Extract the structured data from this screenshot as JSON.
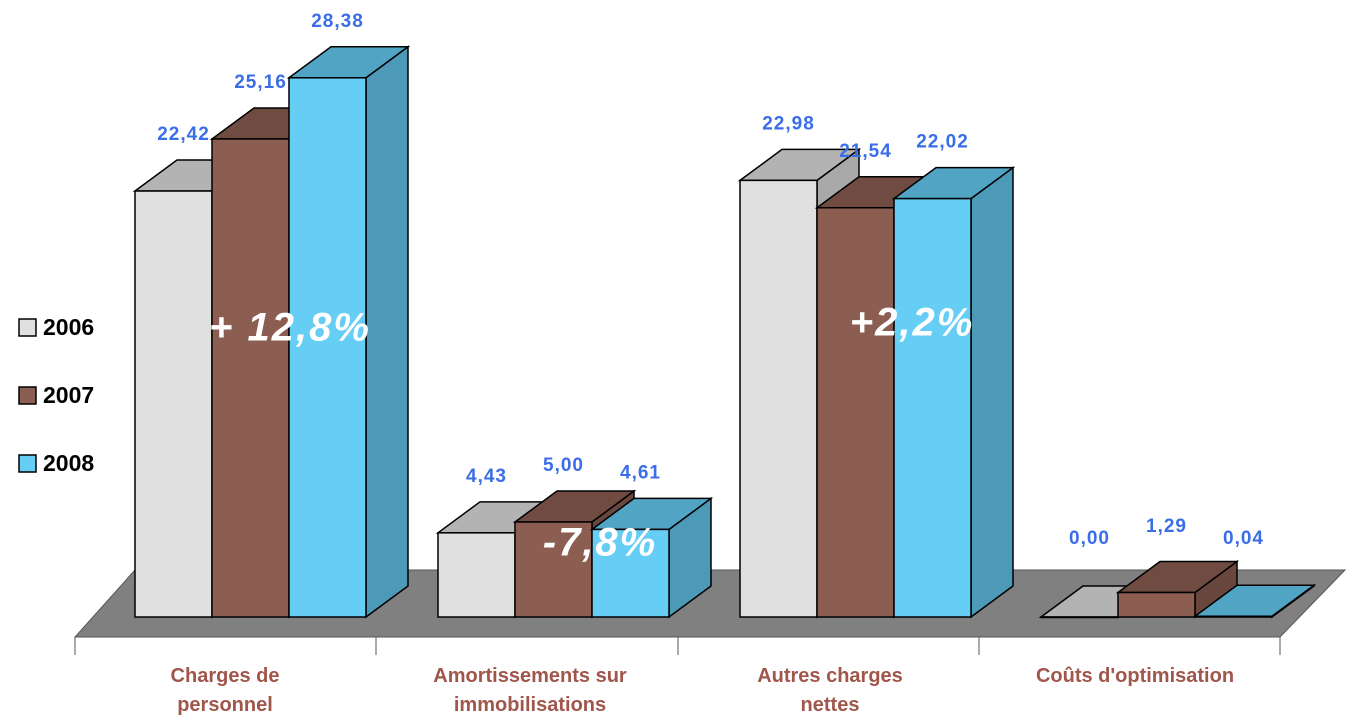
{
  "chart_data": {
    "type": "bar3d",
    "categories": [
      "Charges de personnel",
      "Amortissements sur immobilisations",
      "Autres charges nettes",
      "Coûts d'optimisation"
    ],
    "series": [
      {
        "name": "2006",
        "color": "#e0e0e0",
        "values": [
          22.42,
          4.43,
          22.98,
          0.0
        ],
        "value_labels": [
          "22,42",
          "4,43",
          "22,98",
          "0,00"
        ]
      },
      {
        "name": "2007",
        "color": "#8c5e52",
        "values": [
          25.16,
          5.0,
          21.54,
          1.29
        ],
        "value_labels": [
          "25,16",
          "5,00",
          "21,54",
          "1,29"
        ]
      },
      {
        "name": "2008",
        "color": "#66cdf5",
        "values": [
          28.38,
          4.61,
          22.02,
          0.04
        ],
        "value_labels": [
          "28,38",
          "4,61",
          "22,02",
          "0,04"
        ]
      }
    ],
    "annotations": [
      "+ 12,8%",
      "-7,8%",
      "+2,2%"
    ],
    "ylim": [
      0,
      30
    ],
    "legend": "left"
  }
}
